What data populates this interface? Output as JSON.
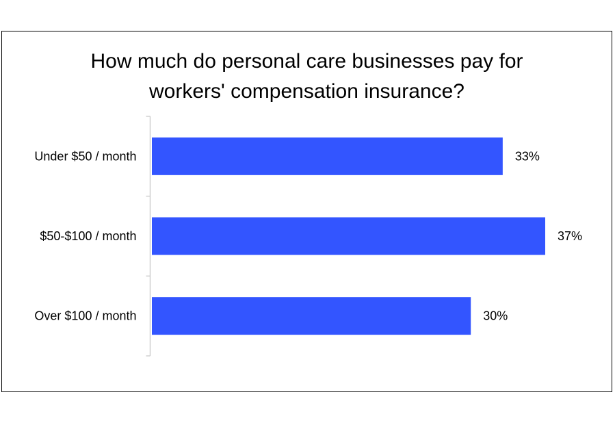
{
  "chart_data": {
    "type": "bar",
    "orientation": "horizontal",
    "title": [
      "How much do personal care businesses pay for",
      "workers' compensation insurance?"
    ],
    "categories": [
      "Under $50 / month",
      "$50-$100 / month",
      "Over $100 / month"
    ],
    "values": [
      33,
      37,
      30
    ],
    "value_labels": [
      "33%",
      "37%",
      "30%"
    ],
    "xlim": [
      0,
      37
    ],
    "bar_color": "#3355FF",
    "axis_color": "#D0D0D0",
    "grid": false,
    "legend": "none"
  }
}
